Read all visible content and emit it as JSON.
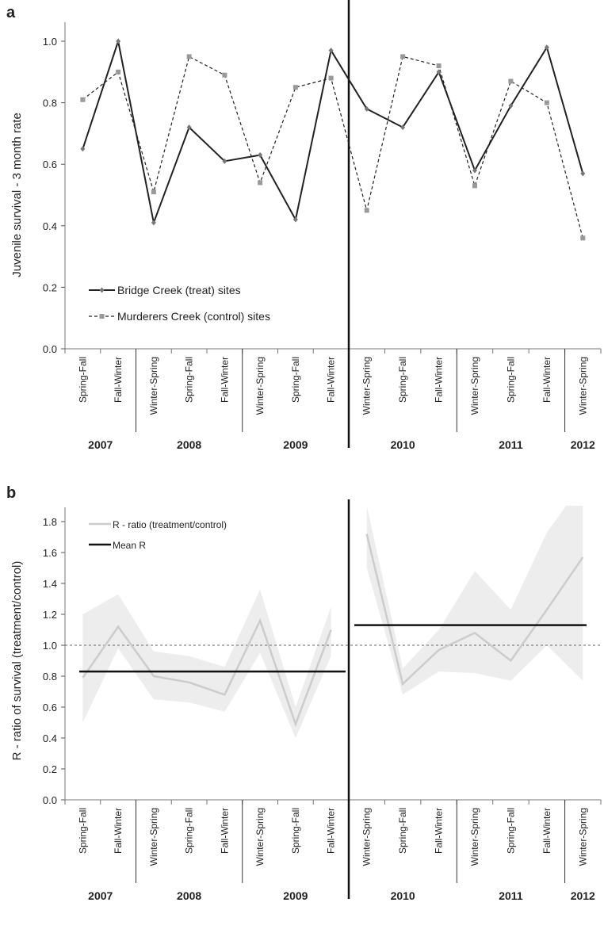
{
  "panels": [
    {
      "letter": "a",
      "ylabel": "Juvenile survival - 3 month rate",
      "ylim": [
        0.0,
        1.0
      ],
      "yticks": [
        "0.0",
        "0.2",
        "0.4",
        "0.6",
        "0.8",
        "1.0"
      ]
    },
    {
      "letter": "b",
      "ylabel": "R - ratio of survival (treatment/control)",
      "ylim": [
        0.0,
        1.9
      ],
      "yticks": [
        "0.0",
        "0.2",
        "0.4",
        "0.6",
        "0.8",
        "1.0",
        "1.2",
        "1.4",
        "1.6",
        "1.8"
      ]
    }
  ],
  "categories": [
    "Spring-Fall",
    "Fall-Winter",
    "Winter-Spring",
    "Spring-Fall",
    "Fall-Winter",
    "Winter-Spring",
    "Spring-Fall",
    "Fall-Winter",
    "Winter-Spring",
    "Spring-Fall",
    "Fall-Winter",
    "Winter-Spring",
    "Spring-Fall",
    "Fall-Winter",
    "Winter-Spring"
  ],
  "years": [
    {
      "label": "2007",
      "start": 0,
      "end": 1
    },
    {
      "label": "2008",
      "start": 2,
      "end": 4
    },
    {
      "label": "2009",
      "start": 5,
      "end": 7
    },
    {
      "label": "2010",
      "start": 8,
      "end": 10
    },
    {
      "label": "2011",
      "start": 11,
      "end": 13
    },
    {
      "label": "2012",
      "start": 14,
      "end": 14
    }
  ],
  "chart_data": [
    {
      "type": "line",
      "panel": "a",
      "ylabel": "Juvenile survival - 3 month rate",
      "ylim": [
        0.0,
        1.0
      ],
      "categories": [
        "Spring-Fall",
        "Fall-Winter",
        "Winter-Spring",
        "Spring-Fall",
        "Fall-Winter",
        "Winter-Spring",
        "Spring-Fall",
        "Fall-Winter",
        "Winter-Spring",
        "Spring-Fall",
        "Fall-Winter",
        "Winter-Spring",
        "Spring-Fall",
        "Fall-Winter",
        "Winter-Spring"
      ],
      "years": [
        "2007",
        "2007",
        "2008",
        "2008",
        "2008",
        "2009",
        "2009",
        "2009",
        "2010",
        "2010",
        "2010",
        "2011",
        "2011",
        "2011",
        "2012"
      ],
      "treatment_boundary_after": "2009 Fall-Winter",
      "legend_position": "lower-left",
      "series": [
        {
          "name": "Bridge Creek (treat) sites",
          "style": "solid",
          "color": "#222222",
          "values": [
            0.65,
            1.0,
            0.41,
            0.72,
            0.61,
            0.63,
            0.42,
            0.97,
            0.78,
            0.72,
            0.9,
            0.58,
            0.79,
            0.98,
            0.57
          ]
        },
        {
          "name": "Murderers Creek (control) sites",
          "style": "dashed",
          "color": "#222222",
          "marker_color": "#999999",
          "values": [
            0.81,
            0.9,
            0.51,
            0.95,
            0.89,
            0.54,
            0.85,
            0.88,
            0.45,
            0.95,
            0.92,
            0.53,
            0.87,
            0.8,
            0.36
          ]
        }
      ]
    },
    {
      "type": "line",
      "panel": "b",
      "ylabel": "R - ratio of survival (treatment/control)",
      "ylim": [
        0.0,
        1.9
      ],
      "categories": [
        "Spring-Fall",
        "Fall-Winter",
        "Winter-Spring",
        "Spring-Fall",
        "Fall-Winter",
        "Winter-Spring",
        "Spring-Fall",
        "Fall-Winter",
        "Winter-Spring",
        "Spring-Fall",
        "Fall-Winter",
        "Winter-Spring",
        "Spring-Fall",
        "Fall-Winter",
        "Winter-Spring"
      ],
      "years": [
        "2007",
        "2007",
        "2008",
        "2008",
        "2008",
        "2009",
        "2009",
        "2009",
        "2010",
        "2010",
        "2010",
        "2011",
        "2011",
        "2011",
        "2012"
      ],
      "reference_line": 1.0,
      "legend_position": "top-left",
      "series": [
        {
          "name": "R - ratio (treatment/control)",
          "style": "solid",
          "color": "#cccccc",
          "values": [
            0.79,
            1.12,
            0.8,
            0.76,
            0.68,
            1.16,
            0.49,
            1.1,
            1.72,
            0.75,
            0.97,
            1.08,
            0.9,
            1.23,
            1.57
          ],
          "band_upper": [
            1.2,
            1.33,
            0.96,
            0.93,
            0.86,
            1.36,
            0.6,
            1.25,
            1.9,
            0.85,
            1.1,
            1.48,
            1.23,
            1.73,
            2.05
          ],
          "band_lower": [
            0.5,
            0.98,
            0.65,
            0.63,
            0.57,
            0.95,
            0.4,
            0.93,
            1.5,
            0.68,
            0.83,
            0.82,
            0.77,
            1.0,
            0.77
          ]
        },
        {
          "name": "Mean R",
          "style": "solid",
          "color": "#111111",
          "segments": [
            {
              "from": 0,
              "to": 7,
              "value": 0.83
            },
            {
              "from": 8,
              "to": 14,
              "value": 1.13
            }
          ]
        }
      ]
    }
  ]
}
